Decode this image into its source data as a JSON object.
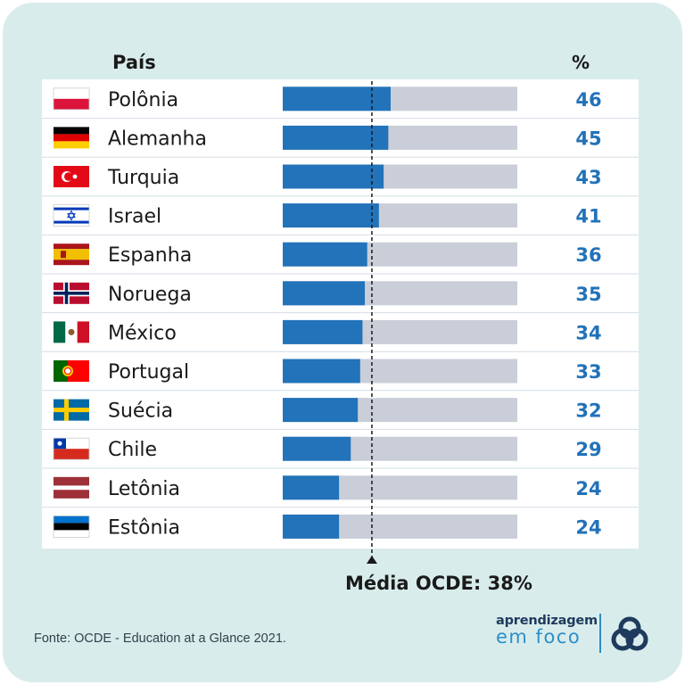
{
  "header": {
    "country_label": "País",
    "percent_label": "%"
  },
  "chart_data": {
    "type": "bar",
    "orientation": "horizontal",
    "xlabel": "",
    "ylabel": "",
    "xlim": [
      0,
      100
    ],
    "categories": [
      "Polônia",
      "Alemanha",
      "Turquia",
      "Israel",
      "Espanha",
      "Noruega",
      "México",
      "Portugal",
      "Suécia",
      "Chile",
      "Letônia",
      "Estônia"
    ],
    "values": [
      46,
      45,
      43,
      41,
      36,
      35,
      34,
      33,
      32,
      29,
      24,
      24
    ],
    "reference_line": {
      "value": 38,
      "label": "Média OCDE: 38%"
    }
  },
  "flags": [
    "poland",
    "germany",
    "turkey",
    "israel",
    "spain",
    "norway",
    "mexico",
    "portugal",
    "sweden",
    "chile",
    "latvia",
    "estonia"
  ],
  "colors": {
    "bar": "#2273b9",
    "track": "#c9ced8",
    "value_text": "#2372b8",
    "text": "#1a1a1a",
    "background": "#d9ecec"
  },
  "footer": {
    "source": "Fonte: OCDE - Education at a Glance 2021.",
    "logo_line1": "aprendizagem",
    "logo_line2": "em foco"
  }
}
